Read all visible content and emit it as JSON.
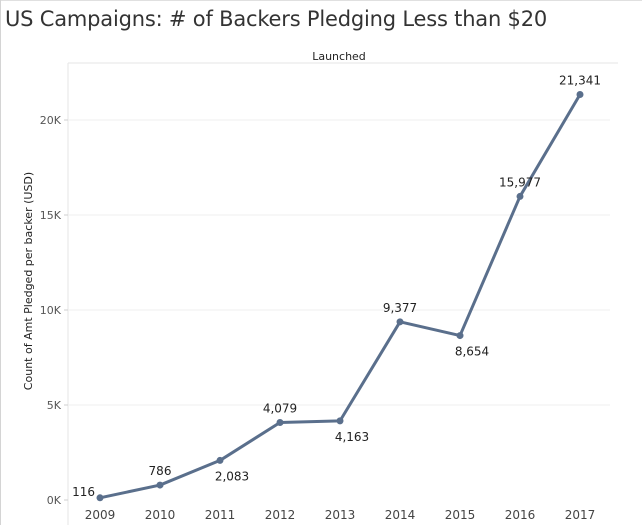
{
  "title": "US Campaigns: # of Backers Pledging Less than $20",
  "chart_data": {
    "type": "line",
    "column_header": "Launched",
    "ylabel": "Count of Amt Pledged per backer (USD)",
    "xlabel": "",
    "categories": [
      "2009",
      "2010",
      "2011",
      "2012",
      "2013",
      "2014",
      "2015",
      "2016",
      "2017"
    ],
    "series": [
      {
        "values": [
          116,
          786,
          2083,
          4079,
          4163,
          9377,
          8654,
          15977,
          21341
        ],
        "labels": [
          "116",
          "786",
          "2,083",
          "4,079",
          "4,163",
          "9,377",
          "8,654",
          "15,977",
          "21,341"
        ],
        "color": "#5a6f8c"
      }
    ],
    "ylim": [
      0,
      23000
    ],
    "yticks": [
      0,
      5000,
      10000,
      15000,
      20000
    ],
    "ytick_labels": [
      "0K",
      "5K",
      "10K",
      "15K",
      "20K"
    ],
    "grid": true,
    "legend": "none",
    "label_positions": [
      "left",
      "above",
      "below",
      "above",
      "below",
      "above",
      "below",
      "above",
      "above"
    ]
  }
}
